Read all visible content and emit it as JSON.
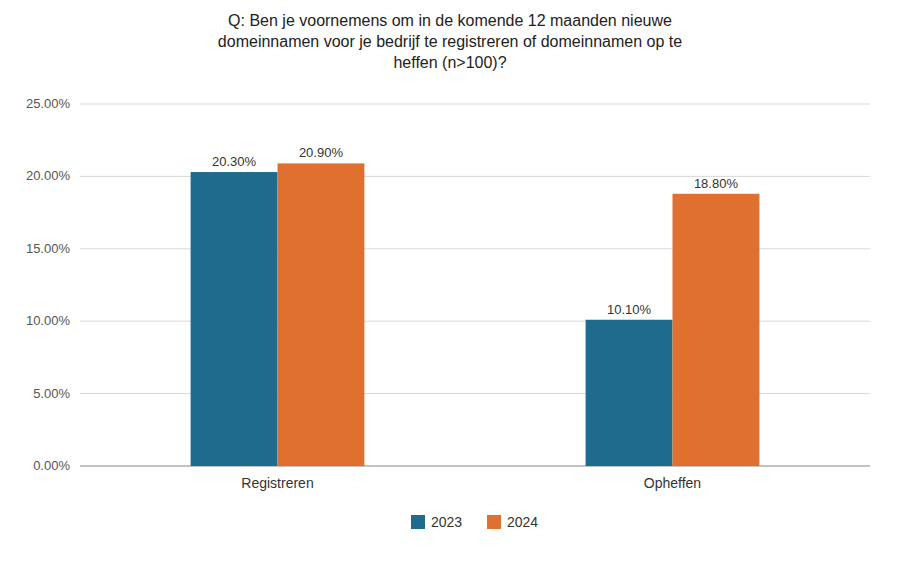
{
  "chart_data": {
    "type": "bar",
    "title": "Q: Ben je voornemens om in de komende 12 maanden nieuwe\ndomeinnamen voor je bedrijf te registreren of domeinnamen op te\nheffen (n>100)?",
    "categories": [
      "Registreren",
      "Opheffen"
    ],
    "series": [
      {
        "name": "2023",
        "color": "#1f6b8e",
        "values": [
          0.203,
          0.101
        ],
        "value_labels": [
          "20.30%",
          "10.10%"
        ]
      },
      {
        "name": "2024",
        "color": "#e07030",
        "values": [
          0.209,
          0.188
        ],
        "value_labels": [
          "20.90%",
          "18.80%"
        ]
      }
    ],
    "ylim": [
      0,
      0.25
    ],
    "yticks": [
      {
        "value": 0.0,
        "label": "0.00%"
      },
      {
        "value": 0.05,
        "label": "5.00%"
      },
      {
        "value": 0.1,
        "label": "10.00%"
      },
      {
        "value": 0.15,
        "label": "15.00%"
      },
      {
        "value": 0.2,
        "label": "20.00%"
      },
      {
        "value": 0.25,
        "label": "25.00%"
      }
    ],
    "grid": true,
    "legend": "bottom",
    "data_labels": true
  }
}
